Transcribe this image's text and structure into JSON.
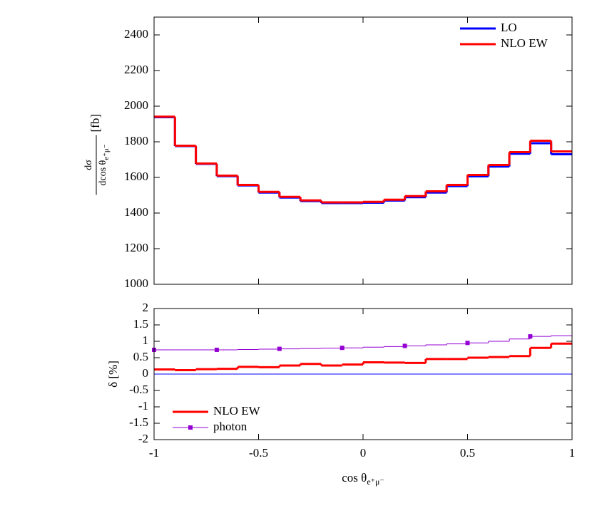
{
  "chart_data": [
    {
      "type": "histogram",
      "y_label": {
        "numerator": "dσ",
        "denominator": "dcos θ",
        "sub": "e⁺μ⁻",
        "unit": "[fb]"
      },
      "bins": [
        -1,
        -0.9,
        -0.8,
        -0.7,
        -0.6,
        -0.5,
        -0.4,
        -0.3,
        -0.2,
        -0.1,
        0,
        0.1,
        0.2,
        0.3,
        0.4,
        0.5,
        0.6,
        0.7,
        0.8,
        0.9,
        1
      ],
      "series": [
        {
          "name": "LO",
          "color": "#0000ff",
          "values": [
            1938,
            1776,
            1676,
            1607,
            1555,
            1515,
            1487,
            1467,
            1456,
            1456,
            1458,
            1470,
            1489,
            1515,
            1551,
            1606,
            1661,
            1733,
            1792,
            1730
          ]
        },
        {
          "name": "NLO EW",
          "color": "#ff0000",
          "values": [
            1941,
            1778,
            1678,
            1610,
            1558,
            1519,
            1491,
            1471,
            1460,
            1460,
            1463,
            1475,
            1495,
            1522,
            1558,
            1614,
            1670,
            1742,
            1806,
            1746
          ]
        }
      ],
      "xlim": [
        -1,
        1
      ],
      "xticks": [
        -1,
        -0.5,
        0,
        0.5,
        1
      ],
      "show_xtick_labels": false,
      "ylim": [
        1000,
        2500
      ],
      "yticks": [
        1000,
        1200,
        1400,
        1600,
        1800,
        2000,
        2200,
        2400
      ],
      "legend": "upper right"
    },
    {
      "type": "histogram",
      "y_label": "δ [%]",
      "x_label": {
        "text": "cos θ",
        "sub": "e⁺μ⁻"
      },
      "bins": [
        -1,
        -0.9,
        -0.8,
        -0.7,
        -0.6,
        -0.5,
        -0.4,
        -0.3,
        -0.2,
        -0.1,
        0,
        0.1,
        0.2,
        0.3,
        0.4,
        0.5,
        0.6,
        0.7,
        0.8,
        0.9,
        1
      ],
      "series": [
        {
          "name": "NLO EW",
          "color": "#ff0000",
          "values": [
            0.14,
            0.12,
            0.15,
            0.16,
            0.22,
            0.21,
            0.26,
            0.31,
            0.26,
            0.29,
            0.36,
            0.35,
            0.34,
            0.46,
            0.46,
            0.5,
            0.52,
            0.55,
            0.8,
            0.93
          ]
        },
        {
          "name": "photon",
          "color": "#9400d3",
          "marker": "square",
          "values": [
            0.74,
            0.74,
            0.74,
            0.74,
            0.75,
            0.76,
            0.77,
            0.78,
            0.79,
            0.8,
            0.82,
            0.84,
            0.86,
            0.89,
            0.92,
            0.95,
            1.0,
            1.07,
            1.15,
            1.17
          ]
        }
      ],
      "xlim": [
        -1,
        1
      ],
      "xticks": [
        -1,
        -0.5,
        0,
        0.5,
        1
      ],
      "show_xtick_labels": true,
      "ylim": [
        -2,
        2
      ],
      "yticks": [
        -2,
        -1.5,
        -1,
        -0.5,
        0,
        0.5,
        1,
        1.5,
        2
      ],
      "zero_line_color": "#0000ff",
      "legend": "lower left"
    }
  ]
}
